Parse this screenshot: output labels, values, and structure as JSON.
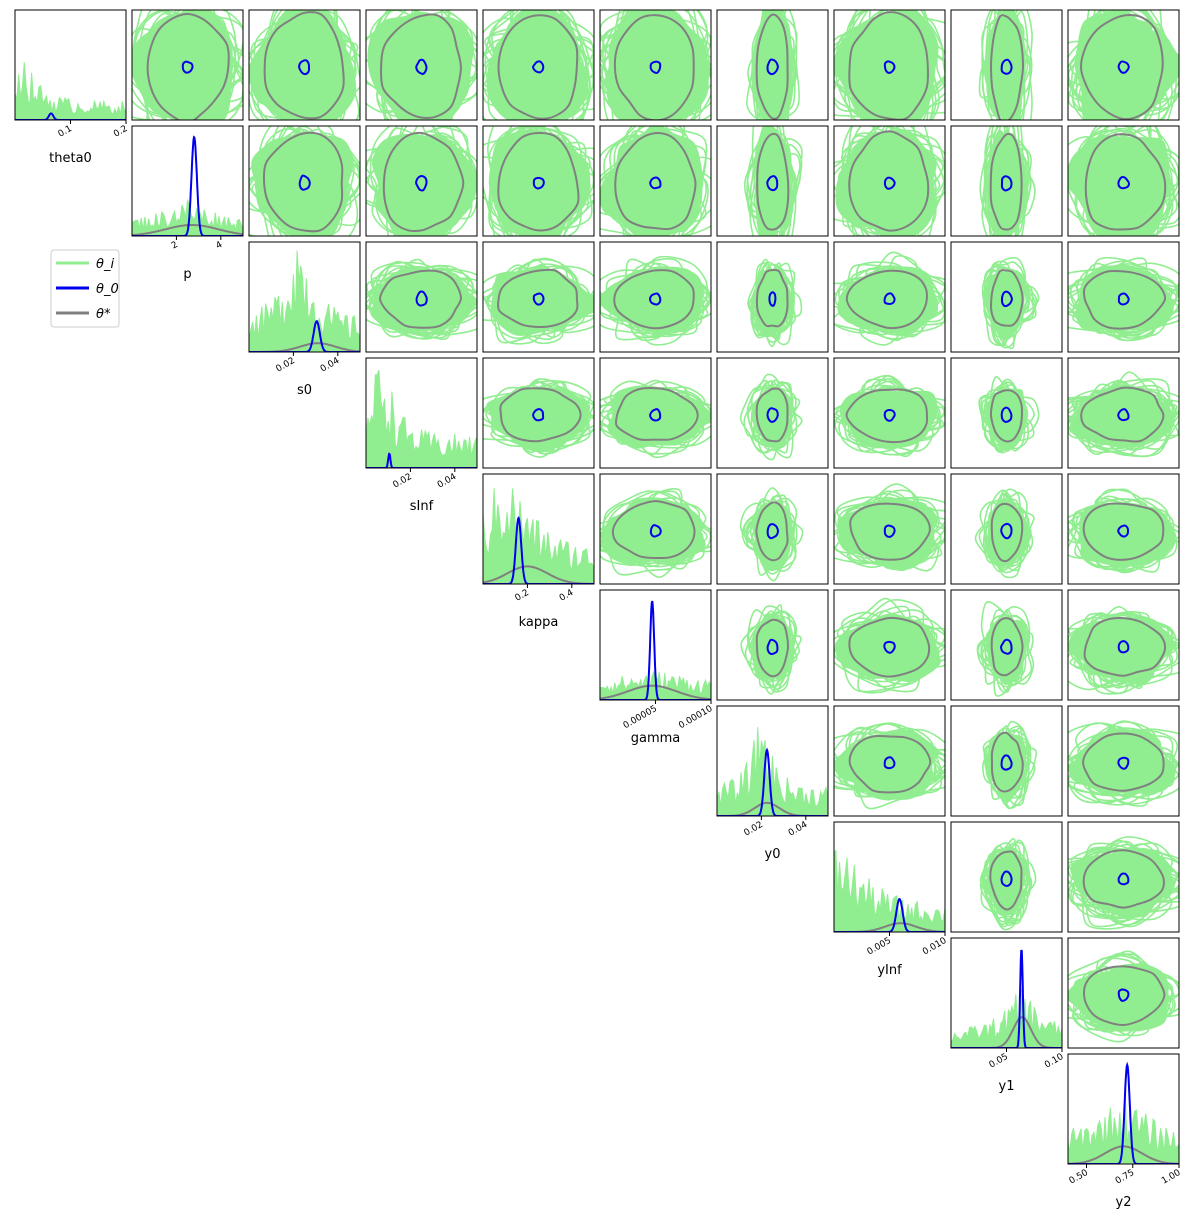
{
  "chart_data": {
    "type": "corner",
    "parameters": [
      "theta0",
      "p",
      "s0",
      "sInf",
      "kappa",
      "gamma",
      "y0",
      "yInf",
      "y1",
      "y2"
    ],
    "legend": {
      "placement": "upper-left empty region",
      "entries": [
        {
          "label": "θ_i",
          "color": "#90ee90"
        },
        {
          "label": "θ_0",
          "color": "#0000ee"
        },
        {
          "label": "θ*",
          "color": "#808080"
        }
      ]
    },
    "colors": {
      "samples": "#90ee90",
      "posterior": "#0000ee",
      "reference": "#808080",
      "frame": "#000000"
    },
    "diagonal": [
      {
        "param": "theta0",
        "xlim": [
          0.0,
          0.2
        ],
        "ticks": [
          {
            "v": 0.1,
            "label": "0.1"
          },
          {
            "v": 0.2,
            "label": "0.2"
          }
        ],
        "blue_mean": 0.065,
        "blue_sd": 0.004,
        "blue_height": 0.06,
        "gray_mean": 0.1,
        "gray_sd": 0.5,
        "gray_height": 0.0,
        "green_peak": 0.01,
        "green_decay": 0.03,
        "green_height": 0.55
      },
      {
        "param": "p",
        "xlim": [
          0.0,
          5.0
        ],
        "ticks": [
          {
            "v": 2,
            "label": "2"
          },
          {
            "v": 4,
            "label": "4"
          }
        ],
        "blue_mean": 2.8,
        "blue_sd": 0.12,
        "blue_height": 0.9,
        "gray_mean": 2.7,
        "gray_sd": 1.2,
        "gray_height": 0.1,
        "green_peak": 2.5,
        "green_decay": 2.0,
        "green_height": 0.28
      },
      {
        "param": "s0",
        "xlim": [
          0.0,
          0.05
        ],
        "ticks": [
          {
            "v": 0.02,
            "label": "0.02"
          },
          {
            "v": 0.04,
            "label": "0.04"
          }
        ],
        "blue_mean": 0.0305,
        "blue_sd": 0.0014,
        "blue_height": 0.28,
        "gray_mean": 0.031,
        "gray_sd": 0.008,
        "gray_height": 0.08,
        "green_peak": 0.022,
        "green_decay": 0.008,
        "green_height": 0.95
      },
      {
        "param": "sInf",
        "xlim": [
          0.0,
          0.05
        ],
        "ticks": [
          {
            "v": 0.02,
            "label": "0.02"
          },
          {
            "v": 0.04,
            "label": "0.04"
          }
        ],
        "blue_mean": 0.0105,
        "blue_sd": 0.0005,
        "blue_height": 0.13,
        "gray_mean": 0.03,
        "gray_sd": 0.02,
        "gray_height": 0.0,
        "green_peak": 0.007,
        "green_decay": 0.006,
        "green_height": 0.98
      },
      {
        "param": "kappa",
        "xlim": [
          0.0,
          0.5
        ],
        "ticks": [
          {
            "v": 0.2,
            "label": "0.2"
          },
          {
            "v": 0.4,
            "label": "0.4"
          }
        ],
        "blue_mean": 0.16,
        "blue_sd": 0.012,
        "blue_height": 0.6,
        "gray_mean": 0.2,
        "gray_sd": 0.09,
        "gray_height": 0.16,
        "green_peak": 0.1,
        "green_decay": 0.15,
        "green_height": 0.9
      },
      {
        "param": "gamma",
        "xlim": [
          0.0,
          0.0001
        ],
        "ticks": [
          {
            "v": 5e-05,
            "label": "0.00005"
          },
          {
            "v": 0.0001,
            "label": "0.00010"
          }
        ],
        "blue_mean": 4.7e-05,
        "blue_sd": 1.8e-06,
        "blue_height": 0.9,
        "gray_mean": 4.7e-05,
        "gray_sd": 2.2e-05,
        "gray_height": 0.13,
        "green_peak": 5e-05,
        "green_decay": 0.0001,
        "green_height": 0.22
      },
      {
        "param": "y0",
        "xlim": [
          0.0,
          0.05
        ],
        "ticks": [
          {
            "v": 0.02,
            "label": "0.02"
          },
          {
            "v": 0.04,
            "label": "0.04"
          }
        ],
        "blue_mean": 0.0225,
        "blue_sd": 0.0012,
        "blue_height": 0.6,
        "gray_mean": 0.0225,
        "gray_sd": 0.0055,
        "gray_height": 0.12,
        "green_peak": 0.02,
        "green_decay": 0.005,
        "green_height": 0.88
      },
      {
        "param": "yInf",
        "xlim": [
          0.0,
          0.01
        ],
        "ticks": [
          {
            "v": 0.005,
            "label": "0.005"
          },
          {
            "v": 0.01,
            "label": "0.010"
          }
        ],
        "blue_mean": 0.0059,
        "blue_sd": 0.00028,
        "blue_height": 0.3,
        "gray_mean": 0.006,
        "gray_sd": 0.0014,
        "gray_height": 0.08,
        "green_peak": 0.0005,
        "green_decay": 0.003,
        "green_height": 0.7
      },
      {
        "param": "y1",
        "xlim": [
          0.0,
          0.1
        ],
        "ticks": [
          {
            "v": 0.05,
            "label": "0.05"
          },
          {
            "v": 0.1,
            "label": "0.10"
          }
        ],
        "blue_mean": 0.0635,
        "blue_sd": 0.0012,
        "blue_height": 0.9,
        "gray_mean": 0.064,
        "gray_sd": 0.008,
        "gray_height": 0.28,
        "green_peak": 0.064,
        "green_decay": 0.02,
        "green_height": 0.48
      },
      {
        "param": "y2",
        "xlim": [
          0.4,
          1.0
        ],
        "ticks": [
          {
            "v": 0.5,
            "label": "0.50"
          },
          {
            "v": 0.75,
            "label": "0.75"
          },
          {
            "v": 1.0,
            "label": "1.00"
          }
        ],
        "blue_mean": 0.72,
        "blue_sd": 0.014,
        "blue_height": 0.9,
        "gray_mean": 0.7,
        "gray_sd": 0.1,
        "gray_height": 0.16,
        "green_peak": 0.7,
        "green_decay": 0.25,
        "green_height": 0.52
      }
    ],
    "pairs_note": "off-diagonal panels (upper triangle) show 2D contours: green θ_i sample contours, gray θ* contour, small blue θ_0 contour"
  }
}
